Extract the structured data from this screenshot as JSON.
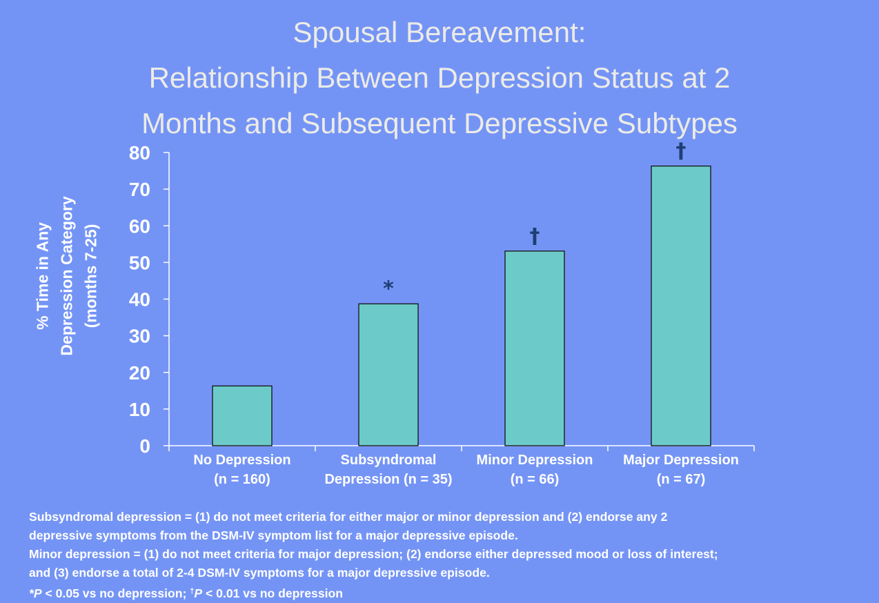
{
  "chart_data": {
    "type": "bar",
    "title": [
      "Spousal Bereavement:",
      "Relationship Between Depression Status at 2",
      "Months and Subsequent Depressive Subtypes"
    ],
    "ylabel": [
      "% Time in Any",
      "Depression Category",
      "(months 7-25)"
    ],
    "xlabel": "",
    "ylim": [
      0,
      80
    ],
    "yticks": [
      0,
      10,
      20,
      30,
      40,
      50,
      60,
      70,
      80
    ],
    "categories": [
      [
        "No Depression",
        "(n = 160)"
      ],
      [
        "Subsyndromal",
        "Depression (n = 35)"
      ],
      [
        "Minor Depression",
        "(n = 66)"
      ],
      [
        "Major Depression",
        "(n = 67)"
      ]
    ],
    "values": [
      16.3,
      38.7,
      53.1,
      76.3
    ],
    "annotations": [
      "",
      "*",
      "†",
      "†"
    ],
    "grid": false,
    "colors": {
      "bar": "#6ccbc8",
      "bar_edge": "#111111",
      "axis": "#ffffff",
      "marker": "#1e3f73"
    }
  },
  "footnotes": {
    "line1": "Subsyndromal depression = (1) do not meet criteria for either major or minor depression and (2) endorse any 2",
    "line2": "depressive symptoms from the DSM-IV symptom list for a major depressive episode.",
    "line3": "Minor depression = (1) do not meet criteria for major depression; (2) endorse either depressed mood or loss of interest;",
    "line4": "and (3) endorse a total of 2-4 DSM-IV symptoms for a major depressive episode.",
    "sig_star": "*",
    "sig_p": "P",
    "sig_text1": " < 0.05 vs no depression; ",
    "sig_dagger": "†",
    "sig_p2": "P",
    "sig_text2": " < 0.01 vs no depression"
  },
  "colors": {
    "background": "#7494f5",
    "title": "#ecebe6",
    "text": "#ffffff"
  }
}
